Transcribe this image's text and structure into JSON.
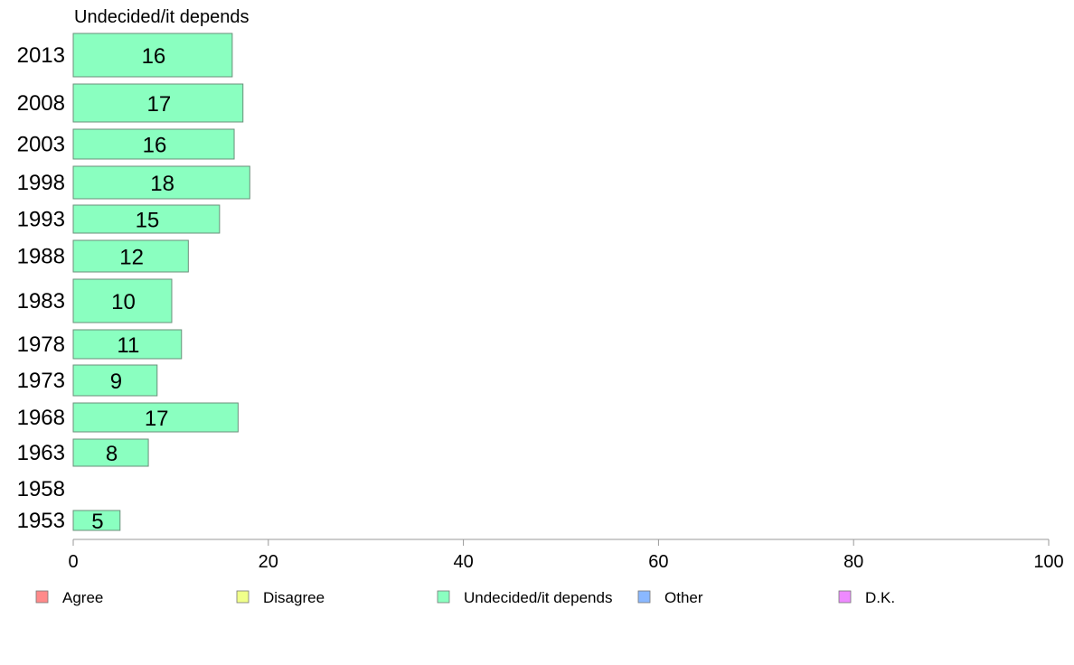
{
  "chart_data": {
    "type": "bar",
    "orientation": "horizontal",
    "title": "Undecided/it depends",
    "categories": [
      "2013",
      "2008",
      "2003",
      "1998",
      "1993",
      "1988",
      "1983",
      "1978",
      "1973",
      "1968",
      "1963",
      "1958",
      "1953"
    ],
    "series": [
      {
        "name": "Undecided/it depends",
        "color": "#8affc0",
        "values": [
          16.3,
          17.4,
          16.5,
          18.1,
          15.0,
          11.8,
          10.1,
          11.1,
          8.6,
          16.9,
          7.7,
          null,
          4.8
        ],
        "labels": [
          "16",
          "17",
          "16",
          "18",
          "15",
          "12",
          "10",
          "11",
          "9",
          "17",
          "8",
          "",
          "5"
        ]
      }
    ],
    "xlim": [
      0,
      100
    ],
    "xticks": [
      0,
      20,
      40,
      60,
      80,
      100
    ],
    "xtick_labels": [
      "0",
      "20",
      "40",
      "60",
      "80",
      "100"
    ],
    "grid": false,
    "legend": {
      "placement": "bottom",
      "items": [
        {
          "label": "Agree",
          "color": "#ff8a8a"
        },
        {
          "label": "Disagree",
          "color": "#f0ff8a"
        },
        {
          "label": "Undecided/it depends",
          "color": "#8affc0"
        },
        {
          "label": "Other",
          "color": "#8ab8ff"
        },
        {
          "label": "D.K.",
          "color": "#ee8aff"
        }
      ]
    }
  }
}
